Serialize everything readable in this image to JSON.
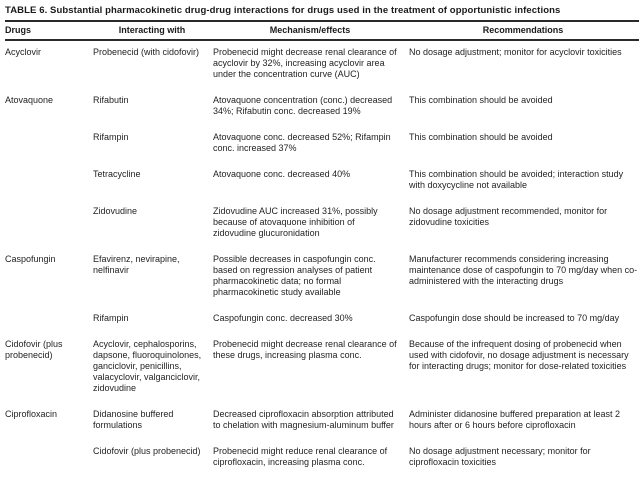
{
  "title": "TABLE 6. Substantial pharmacokinetic drug-drug interactions for drugs used in the treatment of opportunistic infections",
  "columns": [
    "Drugs",
    "Interacting with",
    "Mechanism/effects",
    "Recommendations"
  ],
  "colors": {
    "text": "#1c1c1c",
    "rule": "#2a2a2a",
    "background": "#ffffff"
  },
  "rows": [
    {
      "drug": "Acyclovir",
      "interacting_with": "Probenecid (with cidofovir)",
      "mechanism": "Probenecid might decrease renal clearance of acyclovir by 32%, increasing acyclovir area under the concentration curve (AUC)",
      "recommendation": "No dosage adjustment; monitor for acyclovir toxicities"
    },
    {
      "drug": "Atovaquone",
      "interacting_with": "Rifabutin",
      "mechanism": "Atovaquone concentration (conc.) decreased 34%; Rifabutin conc. decreased 19%",
      "recommendation": "This combination should be avoided"
    },
    {
      "drug": "",
      "interacting_with": "Rifampin",
      "mechanism": "Atovaquone conc. decreased 52%; Rifampin conc. increased 37%",
      "recommendation": "This combination should be avoided"
    },
    {
      "drug": "",
      "interacting_with": "Tetracycline",
      "mechanism": "Atovaquone conc. decreased 40%",
      "recommendation": "This combination should be avoided; interaction study with doxycycline not available"
    },
    {
      "drug": "",
      "interacting_with": "Zidovudine",
      "mechanism": "Zidovudine AUC increased 31%, possibly because of atovaquone inhibition of zidovudine glucuronidation",
      "recommendation": "No dosage adjustment recommended, monitor for zidovudine toxicities"
    },
    {
      "drug": "Caspofungin",
      "interacting_with": "Efavirenz, nevirapine, nelfinavir",
      "mechanism": "Possible decreases in caspofungin conc. based on regression analyses of patient pharmacokinetic data; no formal pharmacokinetic study available",
      "recommendation": "Manufacturer recommends considering increasing maintenance dose of caspofungin to 70 mg/day when co-administered with the interacting drugs"
    },
    {
      "drug": "",
      "interacting_with": "Rifampin",
      "mechanism": "Caspofungin conc. decreased 30%",
      "recommendation": "Caspofungin dose should be increased to 70 mg/day"
    },
    {
      "drug": "Cidofovir (plus probenecid)",
      "interacting_with": "Acyclovir, cephalosporins, dapsone, fluoroquinolones, ganciclovir, penicillins, valacyclovir, valganciclovir, zidovudine",
      "mechanism": "Probenecid might decrease renal clearance of these drugs, increasing plasma conc.",
      "recommendation": "Because of the infrequent dosing of probenecid when used with cidofovir, no dosage adjustment is necessary for interacting drugs; monitor for dose-related toxicities"
    },
    {
      "drug": "Ciprofloxacin",
      "interacting_with": "Didanosine buffered formulations",
      "mechanism": "Decreased ciprofloxacin absorption attributed to chelation with magnesium-aluminum buffer",
      "recommendation": "Administer didanosine buffered preparation at least 2 hours after or 6 hours before ciprofloxacin"
    },
    {
      "drug": "",
      "interacting_with": "Cidofovir (plus probenecid)",
      "mechanism": "Probenecid might reduce renal clearance of ciprofloxacin, increasing plasma conc.",
      "recommendation": "No dosage adjustment necessary; monitor for ciprofloxacin toxicities"
    }
  ]
}
